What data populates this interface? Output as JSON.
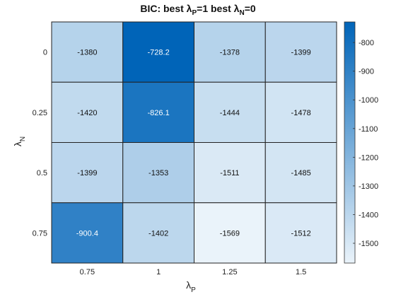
{
  "chart_data": {
    "type": "heatmap",
    "title": {
      "parts": [
        "BIC: best ",
        "λ",
        "P",
        "=1 best  ",
        "λ",
        "N",
        "=0"
      ]
    },
    "xlabel": {
      "symbol": "λ",
      "subscript": "P"
    },
    "ylabel": {
      "symbol": "λ",
      "subscript": "N"
    },
    "x_categories": [
      "0.75",
      "1",
      "1.25",
      "1.5"
    ],
    "y_categories": [
      "0",
      "0.25",
      "0.5",
      "0.75"
    ],
    "values": [
      [
        -1380,
        -728.2,
        -1378,
        -1399
      ],
      [
        -1420,
        -826.1,
        -1444,
        -1478
      ],
      [
        -1399,
        -1353,
        -1511,
        -1485
      ],
      [
        -900.4,
        -1402,
        -1569,
        -1512
      ]
    ],
    "cell_labels": [
      [
        "-1380",
        "-728.2",
        "-1378",
        "-1399"
      ],
      [
        "-1420",
        "-826.1",
        "-1444",
        "-1478"
      ],
      [
        "-1399",
        "-1353",
        "-1511",
        "-1485"
      ],
      [
        "-900.4",
        "-1402",
        "-1569",
        "-1512"
      ]
    ],
    "colorbar": {
      "range": [
        -1569,
        -728.2
      ],
      "ticks": [
        -800,
        -900,
        -1000,
        -1100,
        -1200,
        -1300,
        -1400,
        -1500
      ],
      "colormap": [
        "#eaf3fa",
        "#0064b8"
      ]
    }
  }
}
